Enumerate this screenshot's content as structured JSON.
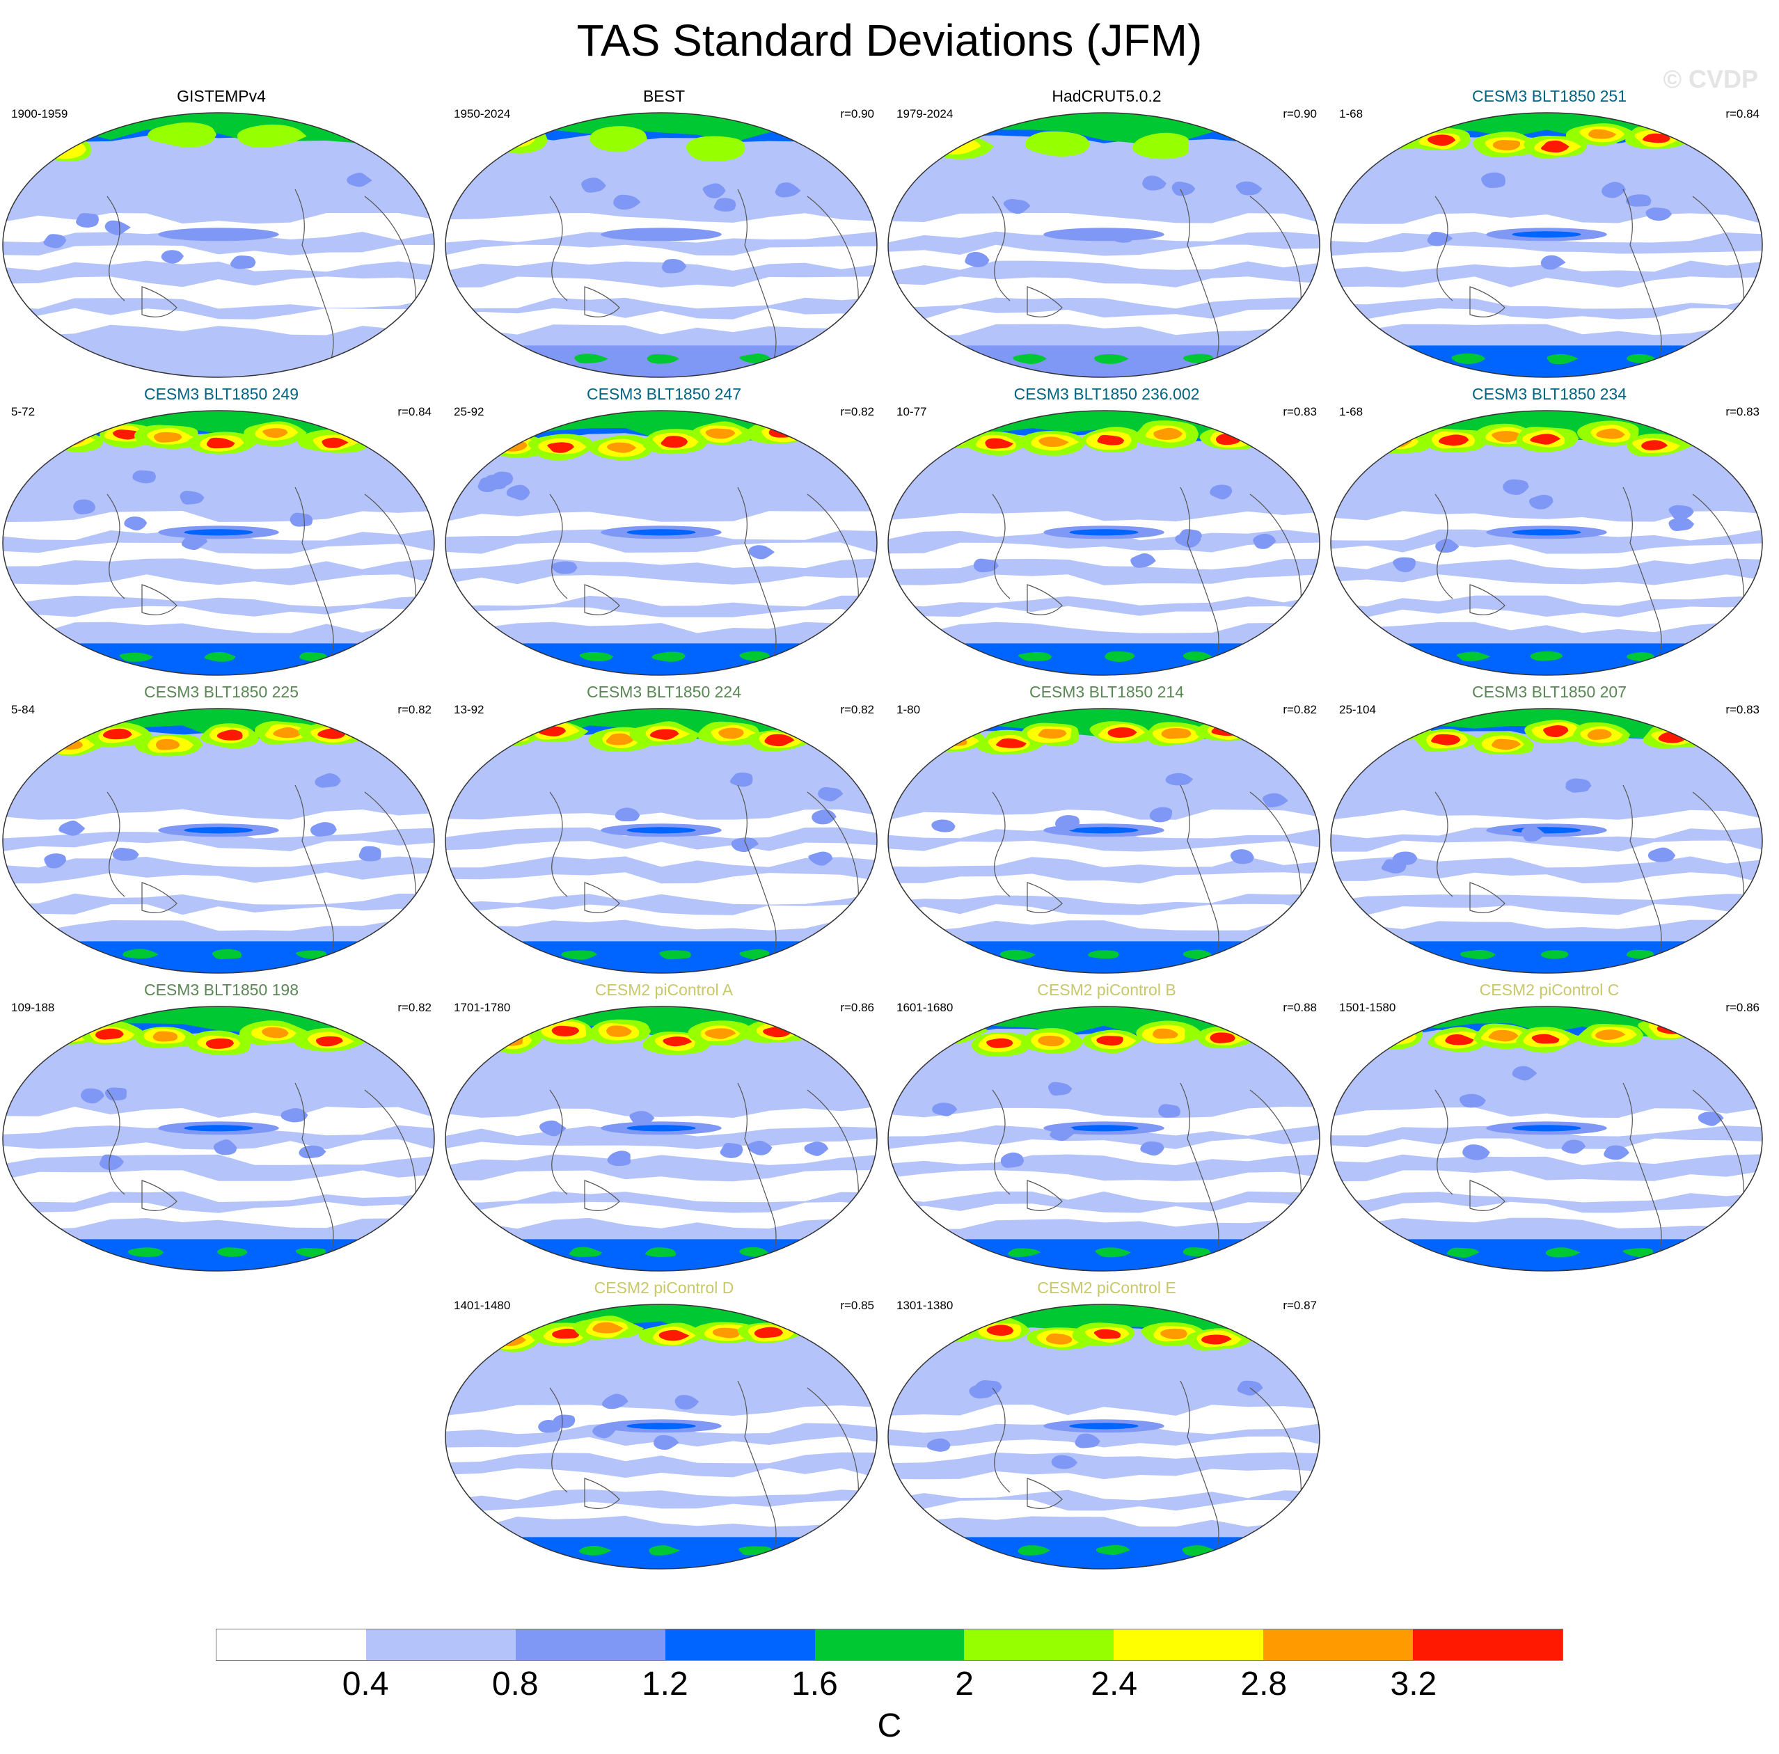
{
  "figure": {
    "title": "TAS Standard Deviations (JFM)",
    "watermark": "© CVDP"
  },
  "title_colors": {
    "observations": "#000000",
    "cesm3_blue": "#006482",
    "cesm3_green": "#5a8755",
    "cesm2": "#c8c869"
  },
  "panels": [
    {
      "title": "GISTEMPv4",
      "years": "1900-1959",
      "r": "",
      "group": "observations",
      "variant": 0
    },
    {
      "title": "BEST",
      "years": "1950-2024",
      "r": "r=0.90",
      "group": "observations",
      "variant": 1
    },
    {
      "title": "HadCRUT5.0.2",
      "years": "1979-2024",
      "r": "r=0.90",
      "group": "observations",
      "variant": 2
    },
    {
      "title": "CESM3 BLT1850 251",
      "years": "1-68",
      "r": "r=0.84",
      "group": "cesm3_blue",
      "variant": 3
    },
    {
      "title": "CESM3 BLT1850 249",
      "years": "5-72",
      "r": "r=0.84",
      "group": "cesm3_blue",
      "variant": 4
    },
    {
      "title": "CESM3 BLT1850 247",
      "years": "25-92",
      "r": "r=0.82",
      "group": "cesm3_blue",
      "variant": 5
    },
    {
      "title": "CESM3 BLT1850 236.002",
      "years": "10-77",
      "r": "r=0.83",
      "group": "cesm3_blue",
      "variant": 6
    },
    {
      "title": "CESM3 BLT1850 234",
      "years": "1-68",
      "r": "r=0.83",
      "group": "cesm3_blue",
      "variant": 7
    },
    {
      "title": "CESM3 BLT1850 225",
      "years": "5-84",
      "r": "r=0.82",
      "group": "cesm3_green",
      "variant": 8
    },
    {
      "title": "CESM3 BLT1850 224",
      "years": "13-92",
      "r": "r=0.82",
      "group": "cesm3_green",
      "variant": 9
    },
    {
      "title": "CESM3 BLT1850 214",
      "years": "1-80",
      "r": "r=0.82",
      "group": "cesm3_green",
      "variant": 10
    },
    {
      "title": "CESM3 BLT1850 207",
      "years": "25-104",
      "r": "r=0.83",
      "group": "cesm3_green",
      "variant": 11
    },
    {
      "title": "CESM3 BLT1850 198",
      "years": "109-188",
      "r": "r=0.82",
      "group": "cesm3_green",
      "variant": 12
    },
    {
      "title": "CESM2 piControl A",
      "years": "1701-1780",
      "r": "r=0.86",
      "group": "cesm2",
      "variant": 13
    },
    {
      "title": "CESM2 piControl B",
      "years": "1601-1680",
      "r": "r=0.88",
      "group": "cesm2",
      "variant": 14
    },
    {
      "title": "CESM2 piControl C",
      "years": "1501-1580",
      "r": "r=0.86",
      "group": "cesm2",
      "variant": 15
    },
    {
      "title": "CESM2 piControl D",
      "years": "1401-1480",
      "r": "r=0.85",
      "group": "cesm2",
      "variant": 16
    },
    {
      "title": "CESM2 piControl E",
      "years": "1301-1380",
      "r": "r=0.87",
      "group": "cesm2",
      "variant": 17
    }
  ],
  "colorbar": {
    "colors": [
      "#ffffff",
      "#b4c3fa",
      "#7f97f5",
      "#0064ff",
      "#00c832",
      "#96ff00",
      "#ffff00",
      "#ff9b00",
      "#ff1900"
    ],
    "ticks": [
      "0.4",
      "0.8",
      "1.2",
      "1.6",
      "2",
      "2.4",
      "2.8",
      "3.2"
    ],
    "unit": "C"
  }
}
